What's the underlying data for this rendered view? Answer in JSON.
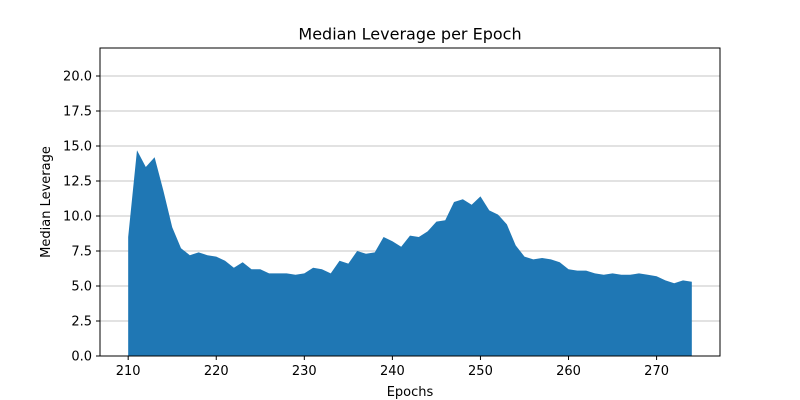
{
  "chart_data": {
    "type": "area",
    "title": "Median Leverage per Epoch",
    "xlabel": "Epochs",
    "ylabel": "Median Leverage",
    "xlim": [
      206.8,
      277.2
    ],
    "ylim": [
      0.0,
      22.0
    ],
    "xticks": [
      210,
      220,
      230,
      240,
      250,
      260,
      270
    ],
    "yticks": [
      0.0,
      2.5,
      5.0,
      7.5,
      10.0,
      12.5,
      15.0,
      17.5,
      20.0
    ],
    "xtick_labels": [
      "210",
      "220",
      "230",
      "240",
      "250",
      "260",
      "270"
    ],
    "ytick_labels": [
      "0.0",
      "2.5",
      "5.0",
      "7.5",
      "10.0",
      "12.5",
      "15.0",
      "17.5",
      "20.0"
    ],
    "grid": "horizontal",
    "fill_color": "#1f77b4",
    "x": [
      210,
      211,
      212,
      213,
      214,
      215,
      216,
      217,
      218,
      219,
      220,
      221,
      222,
      223,
      224,
      225,
      226,
      227,
      228,
      229,
      230,
      231,
      232,
      233,
      234,
      235,
      236,
      237,
      238,
      239,
      240,
      241,
      242,
      243,
      244,
      245,
      246,
      247,
      248,
      249,
      250,
      251,
      252,
      253,
      254,
      255,
      256,
      257,
      258,
      259,
      260,
      261,
      262,
      263,
      264,
      265,
      266,
      267,
      268,
      269,
      270,
      271,
      272,
      273,
      274
    ],
    "y": [
      8.5,
      14.7,
      13.5,
      14.2,
      11.8,
      9.2,
      7.7,
      7.2,
      7.4,
      7.2,
      7.1,
      6.8,
      6.3,
      6.7,
      6.2,
      6.2,
      5.9,
      5.9,
      5.9,
      5.8,
      5.9,
      6.3,
      6.2,
      5.9,
      6.8,
      6.6,
      7.5,
      7.3,
      7.4,
      8.5,
      8.2,
      7.8,
      8.6,
      8.5,
      8.9,
      9.6,
      9.7,
      11.0,
      11.2,
      10.8,
      11.4,
      10.4,
      10.1,
      9.4,
      7.9,
      7.1,
      6.9,
      7.0,
      6.9,
      6.7,
      6.2,
      6.1,
      6.1,
      5.9,
      5.8,
      5.9,
      5.8,
      5.8,
      5.9,
      5.8,
      5.7,
      5.4,
      5.2,
      5.4,
      5.3
    ]
  }
}
